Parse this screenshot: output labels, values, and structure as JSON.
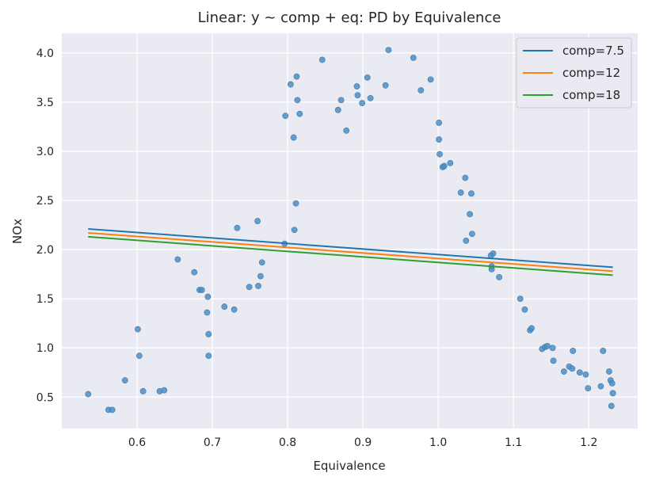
{
  "chart_data": {
    "type": "scatter",
    "title": "Linear: y ~ comp + eq: PD by Equivalence",
    "xlabel": "Equivalence",
    "ylabel": "NOx",
    "xlim": [
      0.5,
      1.265
    ],
    "ylim": [
      0.18,
      4.2
    ],
    "xticks": [
      "0.6",
      "0.7",
      "0.8",
      "0.9",
      "1.0",
      "1.1",
      "1.2"
    ],
    "yticks": [
      "0.5",
      "1.0",
      "1.5",
      "2.0",
      "2.5",
      "3.0",
      "3.5",
      "4.0"
    ],
    "grid": true,
    "legend_position": "top-right",
    "background": "#eaeaf2",
    "scatter": {
      "color": "#4c8fc4",
      "points": [
        [
          0.535,
          0.53
        ],
        [
          0.562,
          0.37
        ],
        [
          0.567,
          0.37
        ],
        [
          0.584,
          0.67
        ],
        [
          0.601,
          1.19
        ],
        [
          0.603,
          0.92
        ],
        [
          0.608,
          0.56
        ],
        [
          0.63,
          0.56
        ],
        [
          0.636,
          0.57
        ],
        [
          0.654,
          1.9
        ],
        [
          0.676,
          1.77
        ],
        [
          0.683,
          1.59
        ],
        [
          0.686,
          1.59
        ],
        [
          0.693,
          1.36
        ],
        [
          0.694,
          1.52
        ],
        [
          0.695,
          1.14
        ],
        [
          0.695,
          0.92
        ],
        [
          0.716,
          1.42
        ],
        [
          0.729,
          1.39
        ],
        [
          0.733,
          2.22
        ],
        [
          0.749,
          1.62
        ],
        [
          0.76,
          2.29
        ],
        [
          0.761,
          1.63
        ],
        [
          0.764,
          1.73
        ],
        [
          0.766,
          1.87
        ],
        [
          0.796,
          2.06
        ],
        [
          0.797,
          3.36
        ],
        [
          0.804,
          3.68
        ],
        [
          0.808,
          3.14
        ],
        [
          0.809,
          2.2
        ],
        [
          0.811,
          2.47
        ],
        [
          0.812,
          3.76
        ],
        [
          0.813,
          3.52
        ],
        [
          0.816,
          3.38
        ],
        [
          0.846,
          3.93
        ],
        [
          0.867,
          3.42
        ],
        [
          0.871,
          3.52
        ],
        [
          0.878,
          3.21
        ],
        [
          0.892,
          3.66
        ],
        [
          0.893,
          3.57
        ],
        [
          0.899,
          3.49
        ],
        [
          0.906,
          3.75
        ],
        [
          0.91,
          3.54
        ],
        [
          0.93,
          3.67
        ],
        [
          0.934,
          4.03
        ],
        [
          0.967,
          3.95
        ],
        [
          0.977,
          3.62
        ],
        [
          0.99,
          3.73
        ],
        [
          1.001,
          3.29
        ],
        [
          1.001,
          3.12
        ],
        [
          1.002,
          2.97
        ],
        [
          1.006,
          2.84
        ],
        [
          1.008,
          2.85
        ],
        [
          1.016,
          2.88
        ],
        [
          1.03,
          2.58
        ],
        [
          1.036,
          2.73
        ],
        [
          1.037,
          2.09
        ],
        [
          1.042,
          2.36
        ],
        [
          1.044,
          2.57
        ],
        [
          1.045,
          2.16
        ],
        [
          1.07,
          1.94
        ],
        [
          1.071,
          1.83
        ],
        [
          1.071,
          1.8
        ],
        [
          1.073,
          1.96
        ],
        [
          1.081,
          1.72
        ],
        [
          1.109,
          1.5
        ],
        [
          1.115,
          1.39
        ],
        [
          1.122,
          1.18
        ],
        [
          1.124,
          1.2
        ],
        [
          1.138,
          0.99
        ],
        [
          1.142,
          1.01
        ],
        [
          1.145,
          1.02
        ],
        [
          1.152,
          1.0
        ],
        [
          1.153,
          0.87
        ],
        [
          1.167,
          0.76
        ],
        [
          1.174,
          0.81
        ],
        [
          1.178,
          0.79
        ],
        [
          1.179,
          0.97
        ],
        [
          1.188,
          0.75
        ],
        [
          1.196,
          0.73
        ],
        [
          1.199,
          0.59
        ],
        [
          1.216,
          0.61
        ],
        [
          1.219,
          0.97
        ],
        [
          1.227,
          0.76
        ],
        [
          1.229,
          0.67
        ],
        [
          1.23,
          0.41
        ],
        [
          1.231,
          0.64
        ],
        [
          1.232,
          0.54
        ]
      ]
    },
    "series": [
      {
        "name": "comp=7.5",
        "color": "#1f77b4",
        "x": [
          0.535,
          1.232
        ],
        "y": [
          2.21,
          1.82
        ]
      },
      {
        "name": "comp=12",
        "color": "#ff7f0e",
        "x": [
          0.535,
          1.232
        ],
        "y": [
          2.17,
          1.78
        ]
      },
      {
        "name": "comp=18",
        "color": "#2ca02c",
        "x": [
          0.535,
          1.232
        ],
        "y": [
          2.13,
          1.74
        ]
      }
    ]
  }
}
